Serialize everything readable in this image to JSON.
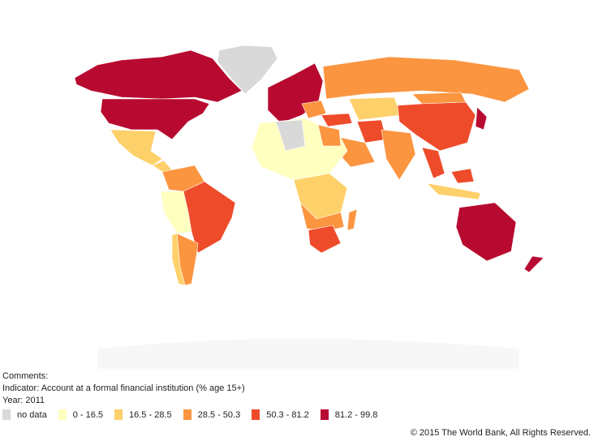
{
  "comments": "Comments:",
  "indicator": "Indicator: Account at a formal financial institution (% age 15+)",
  "year": "Year: 2011",
  "legend": [
    {
      "label": "no data",
      "color": "#d9d9d9"
    },
    {
      "label": "0 - 16.5",
      "color": "#ffffbf"
    },
    {
      "label": "16.5 - 28.5",
      "color": "#fed06a"
    },
    {
      "label": "28.5 - 50.3",
      "color": "#fc9540"
    },
    {
      "label": "50.3 - 81.2",
      "color": "#ee4b2b"
    },
    {
      "label": "81.2 - 99.8",
      "color": "#b80a30"
    }
  ],
  "copyright": "© 2015 The World Bank, All Rights Reserved."
}
